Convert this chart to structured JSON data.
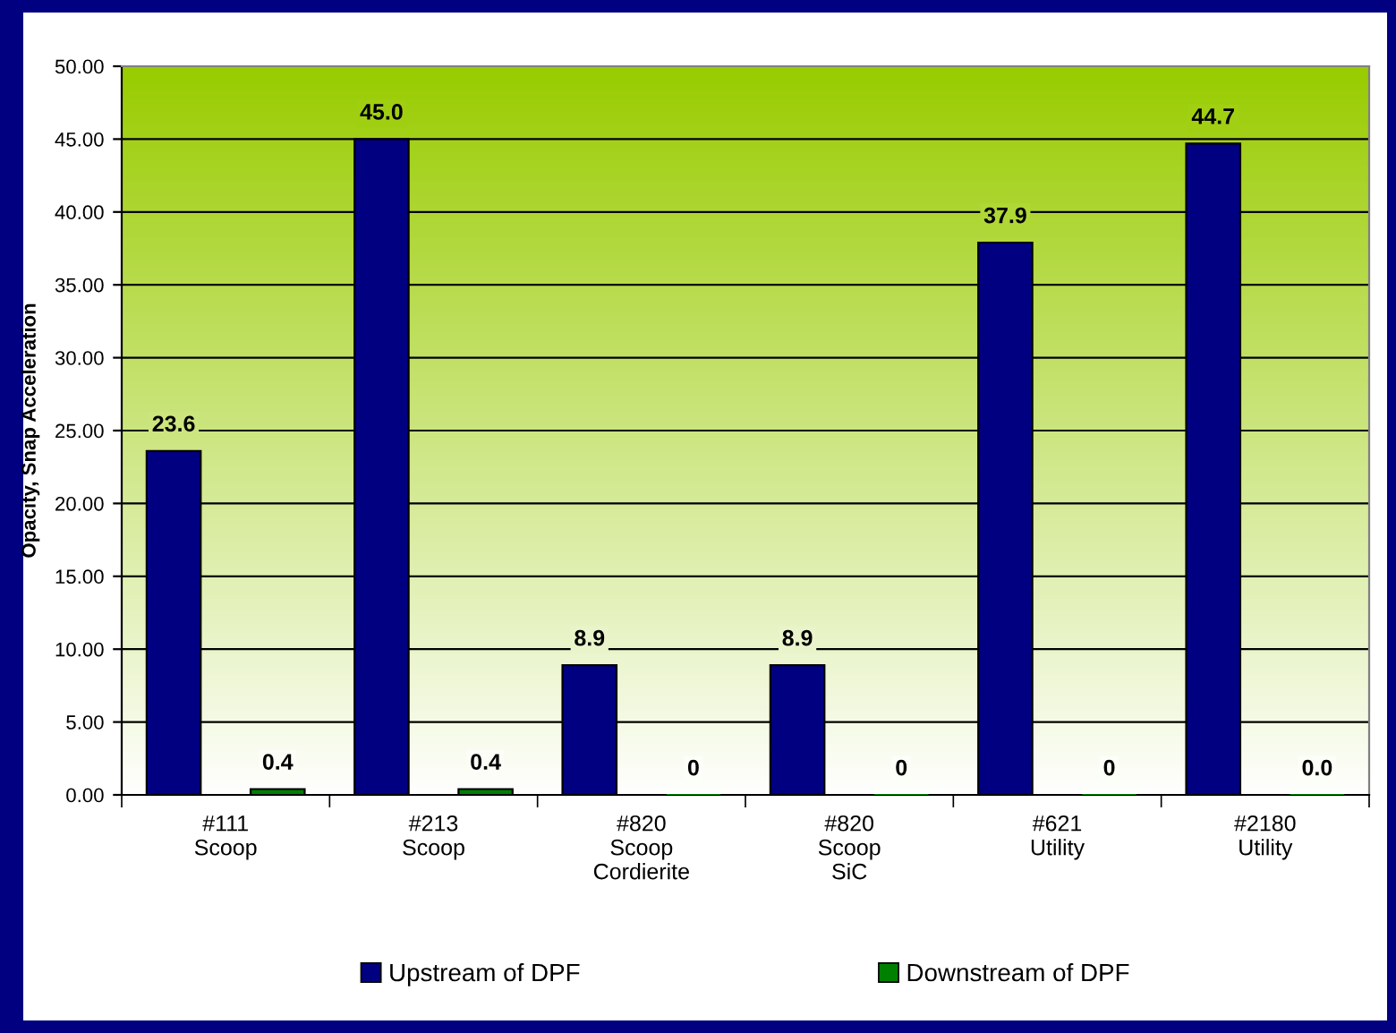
{
  "chart_data": {
    "type": "bar",
    "ylabel": "Opacity, Snap Acceleration",
    "categories": [
      "#111\nScoop",
      "#213\nScoop",
      "#820\nScoop\nCordierite",
      "#820\nScoop\nSiC",
      "#621\nUtility",
      "#2180\nUtility"
    ],
    "series": [
      {
        "name": "Upstream of DPF",
        "color": "#000080",
        "values": [
          23.6,
          45.0,
          8.9,
          8.9,
          37.9,
          44.7
        ],
        "value_labels": [
          "23.6",
          "45.0",
          "8.9",
          "8.9",
          "37.9",
          "44.7"
        ]
      },
      {
        "name": "Downstream of DPF",
        "color": "#008000",
        "values": [
          0.4,
          0.4,
          0,
          0,
          0,
          0
        ],
        "value_labels": [
          "0.4",
          "0.4",
          "0",
          "0",
          "0",
          "0.0"
        ]
      }
    ],
    "ylim": [
      0,
      50
    ],
    "yticks": [
      {
        "value": 0,
        "label": "0.00"
      },
      {
        "value": 5,
        "label": "5.00"
      },
      {
        "value": 10,
        "label": "10.00"
      },
      {
        "value": 15,
        "label": "15.00"
      },
      {
        "value": 20,
        "label": "20.00"
      },
      {
        "value": 25,
        "label": "25.00"
      },
      {
        "value": 30,
        "label": "30.00"
      },
      {
        "value": 35,
        "label": "35.00"
      },
      {
        "value": 40,
        "label": "40.00"
      },
      {
        "value": 45,
        "label": "45.00"
      },
      {
        "value": 50,
        "label": "50.00"
      }
    ],
    "grid": "y",
    "legend": "bottom"
  }
}
